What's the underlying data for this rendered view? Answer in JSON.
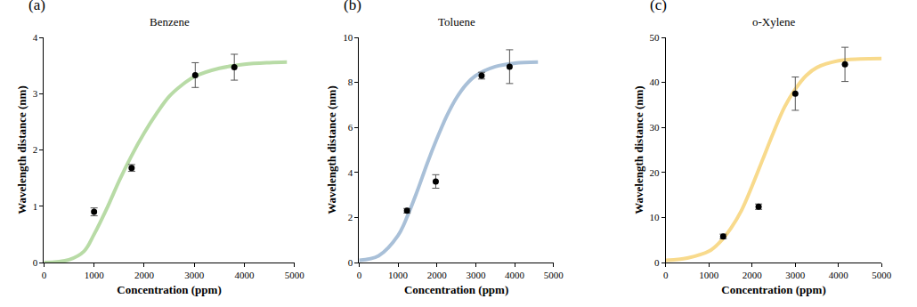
{
  "chart_data": [
    {
      "type": "scatter",
      "annotation": "(a)",
      "title": "Benzene",
      "x_label": "Concentration (ppm)",
      "y_label": "Wavelength distance (nm)",
      "xlim": [
        0,
        5000
      ],
      "xticks": [
        0,
        1000,
        2000,
        3000,
        4000,
        5000
      ],
      "ylim": [
        0,
        4
      ],
      "yticks": [
        0,
        1,
        2,
        3,
        4
      ],
      "grid": false,
      "series": [
        {
          "type": "line",
          "color": "#b8dba6",
          "x": [
            0,
            500,
            800,
            1000,
            1250,
            1500,
            1750,
            2000,
            2250,
            2500,
            2750,
            3000,
            3500,
            4000,
            4500,
            4850
          ],
          "values": [
            0,
            0.05,
            0.2,
            0.5,
            0.95,
            1.45,
            1.9,
            2.3,
            2.65,
            2.95,
            3.15,
            3.3,
            3.45,
            3.52,
            3.55,
            3.56
          ]
        },
        {
          "type": "scatter",
          "marker": "circle",
          "color": "#000000",
          "x": [
            1000,
            1750,
            3020,
            3800
          ],
          "values": [
            0.9,
            1.68,
            3.33,
            3.47
          ],
          "error": [
            0.07,
            0.06,
            0.22,
            0.23
          ]
        }
      ]
    },
    {
      "type": "scatter",
      "annotation": "(b)",
      "title": "Toluene",
      "x_label": "Concentration (ppm)",
      "y_label": "Wavelength distance (nm)",
      "xlim": [
        0,
        5000
      ],
      "xticks": [
        0,
        1000,
        2000,
        3000,
        4000,
        5000
      ],
      "ylim": [
        0,
        10
      ],
      "yticks": [
        0,
        2,
        4,
        6,
        8,
        10
      ],
      "grid": false,
      "series": [
        {
          "type": "line",
          "color": "#a9c0d8",
          "x": [
            0,
            500,
            1000,
            1250,
            1500,
            1750,
            2000,
            2250,
            2500,
            2750,
            3000,
            3500,
            4000,
            4600
          ],
          "values": [
            0.1,
            0.3,
            1.2,
            2.1,
            3.2,
            4.4,
            5.5,
            6.5,
            7.3,
            7.9,
            8.3,
            8.7,
            8.85,
            8.9
          ]
        },
        {
          "type": "scatter",
          "marker": "circle",
          "color": "#000000",
          "x": [
            1230,
            1970,
            3150,
            3870
          ],
          "values": [
            2.3,
            3.6,
            8.3,
            8.7
          ],
          "error": [
            0.1,
            0.3,
            0.15,
            0.75
          ]
        }
      ]
    },
    {
      "type": "scatter",
      "annotation": "(c)",
      "title": "o-Xylene",
      "x_label": "Concentration (ppm)",
      "y_label": "Wavelength distance (nm)",
      "xlim": [
        0,
        5000
      ],
      "xticks": [
        0,
        1000,
        2000,
        3000,
        4000,
        5000
      ],
      "ylim": [
        0,
        50
      ],
      "yticks": [
        0,
        10,
        20,
        30,
        40,
        50
      ],
      "grid": false,
      "series": [
        {
          "type": "line",
          "color": "#f8da8c",
          "x": [
            0,
            500,
            1000,
            1250,
            1500,
            1750,
            2000,
            2250,
            2500,
            2750,
            3000,
            3250,
            3500,
            4000,
            4500,
            5000
          ],
          "values": [
            0.5,
            1,
            2.5,
            4.5,
            7.5,
            11.5,
            17,
            23,
            29,
            34.5,
            38.5,
            41.5,
            43.3,
            44.8,
            45.2,
            45.3
          ]
        },
        {
          "type": "scatter",
          "marker": "circle",
          "color": "#000000",
          "x": [
            1330,
            2150,
            3000,
            4150
          ],
          "values": [
            5.8,
            12.4,
            37.5,
            44
          ],
          "error": [
            0.5,
            0.6,
            3.7,
            3.8
          ]
        }
      ]
    }
  ]
}
